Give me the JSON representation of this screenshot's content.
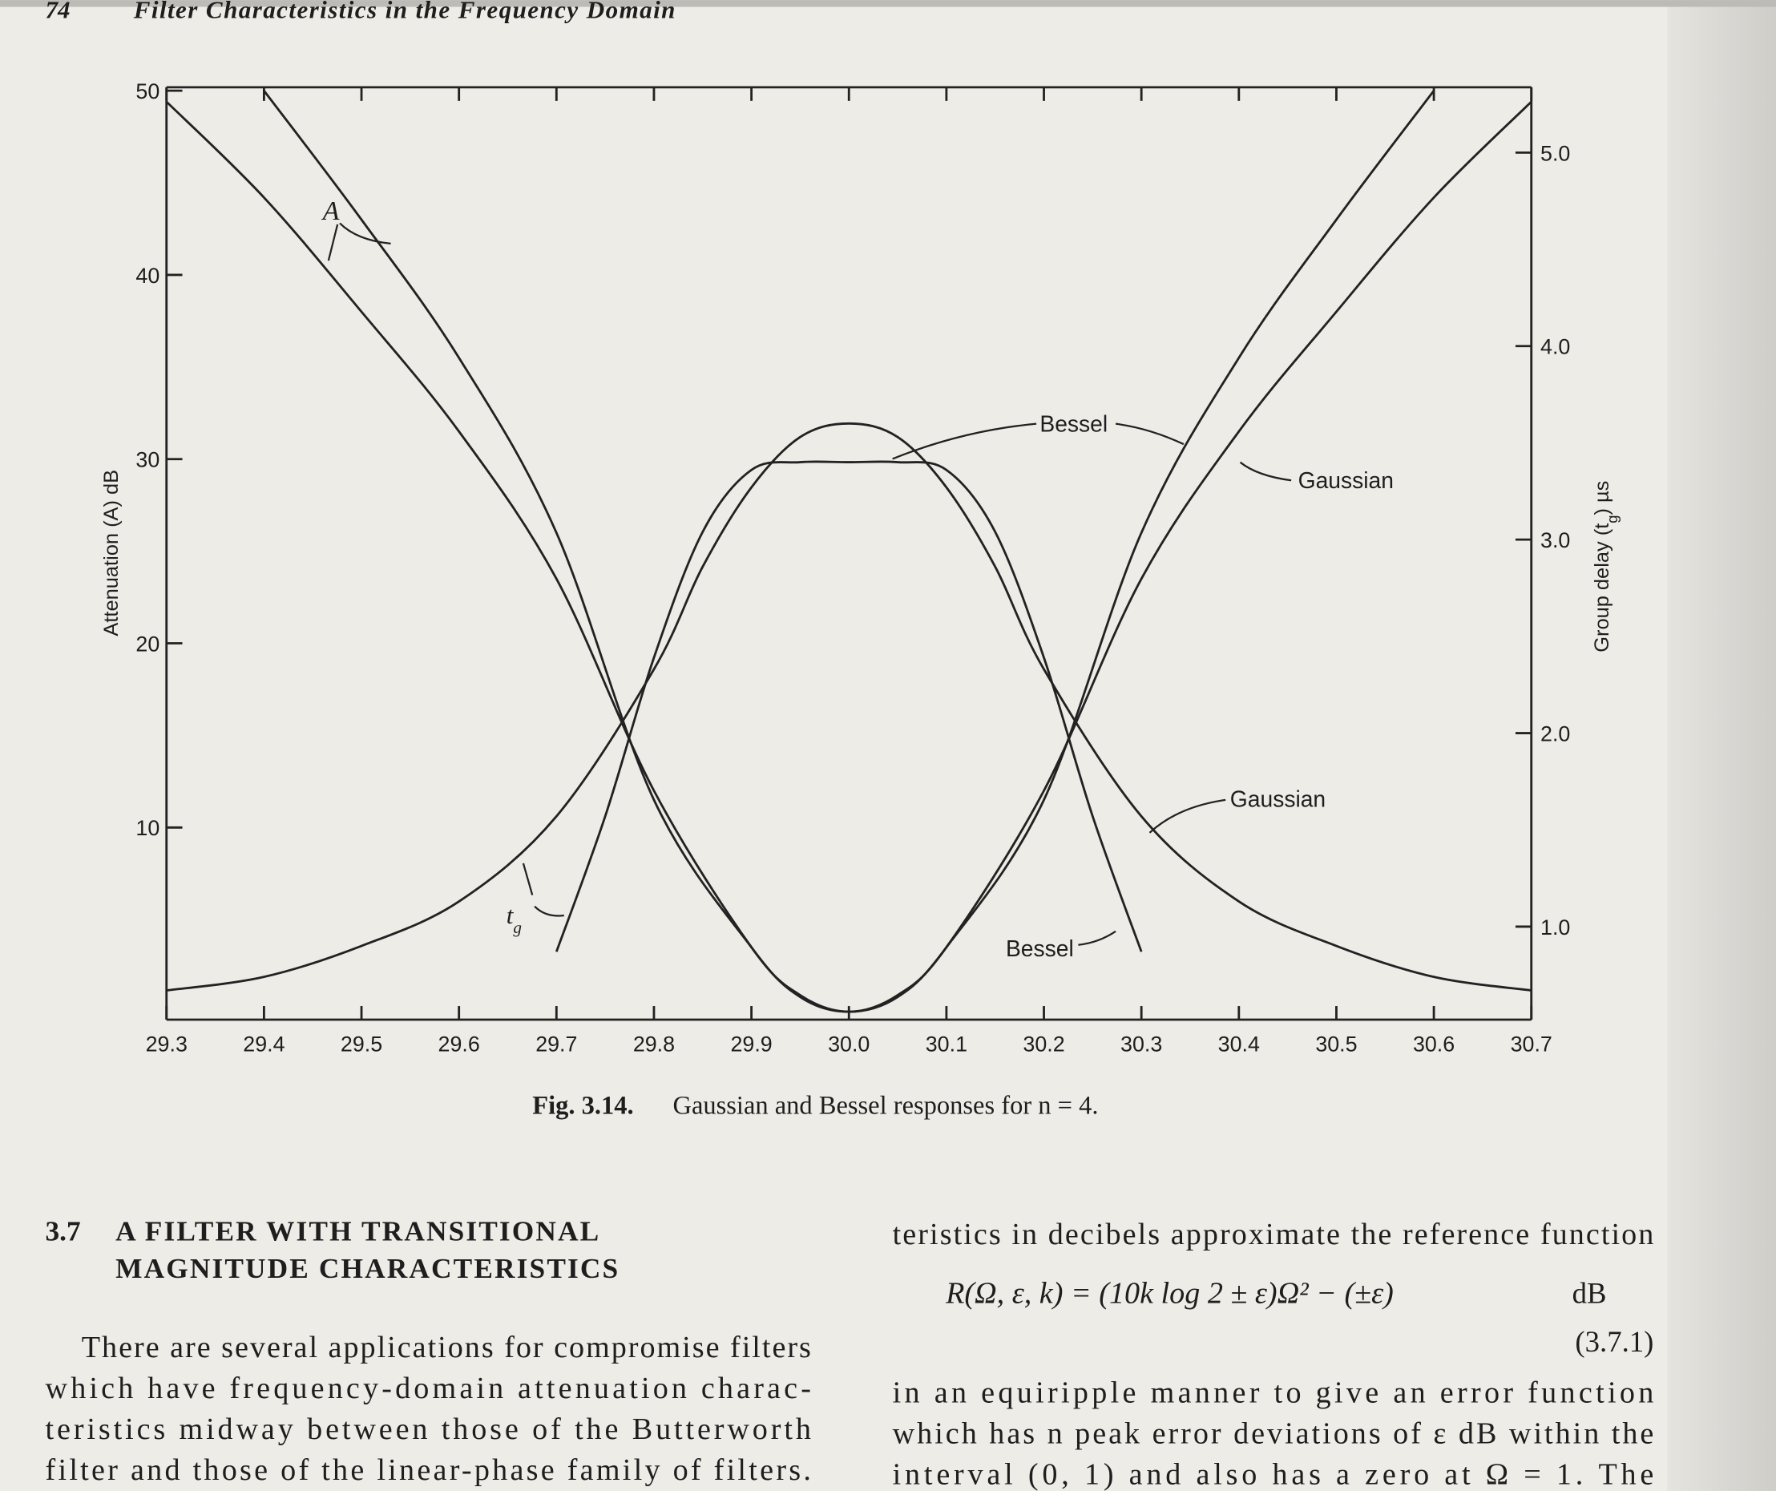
{
  "header": {
    "page_number": "74",
    "running_title": "Filter Characteristics in the Frequency Domain"
  },
  "chart_data": {
    "type": "line",
    "ylabel": "Attenuation (A) dB",
    "y2label": {
      "before": "Group delay (t",
      "subscript": "g",
      "after": ") µs"
    },
    "xlim": [
      29.3,
      30.7
    ],
    "xticks": [
      29.3,
      29.4,
      29.5,
      29.6,
      29.7,
      29.8,
      29.9,
      {
        "value": 30,
        "label": "30.0"
      },
      30.1,
      30.2,
      30.3,
      30.4,
      30.5,
      30.6,
      30.7
    ],
    "ylim": [
      0,
      50
    ],
    "yticks": [
      10,
      20,
      30,
      40,
      50
    ],
    "y2lim": [
      0.56,
      5.32
    ],
    "y2ticks": [
      {
        "value": 1,
        "label": "1.0"
      },
      {
        "value": 2,
        "label": "2.0"
      },
      {
        "value": 3,
        "label": "3.0"
      },
      {
        "value": 4,
        "label": "4.0"
      },
      {
        "value": 5,
        "label": "5.0"
      }
    ],
    "grid": false,
    "series": [
      {
        "color": "#222222",
        "x": [
          29.3,
          29.4,
          29.5,
          29.6,
          29.7,
          29.8,
          29.9,
          29.95,
          30.0,
          30.05,
          30.1,
          30.2,
          30.3,
          30.4,
          30.5,
          30.6,
          30.7
        ],
        "values": [
          49.4,
          44.2,
          38,
          31.5,
          23.5,
          12,
          3.5,
          0.9,
          0,
          0.9,
          3.5,
          12,
          23.5,
          31.5,
          38,
          44.2,
          49.4
        ]
      },
      {
        "color": "#222222",
        "x": [
          29.4,
          29.5,
          29.6,
          29.7,
          29.8,
          29.9,
          29.95,
          30.0,
          30.05,
          30.1,
          30.2,
          30.3,
          30.4,
          30.5,
          30.6
        ],
        "values": [
          50,
          43,
          35.5,
          26,
          11.5,
          3.5,
          0.8,
          0,
          0.8,
          3.5,
          11.5,
          26,
          35.5,
          43,
          50
        ]
      },
      {
        "color": "#222222",
        "axis": "y2",
        "x": [
          29.3,
          29.4,
          29.5,
          29.6,
          29.7,
          29.8,
          29.85,
          29.9,
          29.95,
          30.0,
          30.05,
          30.1,
          30.15,
          30.2,
          30.3,
          30.4,
          30.5,
          30.6,
          30.7
        ],
        "values": [
          0.67,
          0.74,
          0.9,
          1.13,
          1.57,
          2.33,
          2.86,
          3.27,
          3.53,
          3.6,
          3.53,
          3.27,
          2.86,
          2.33,
          1.57,
          1.13,
          0.9,
          0.74,
          0.67
        ]
      },
      {
        "color": "#222222",
        "axis": "y2",
        "x": [
          29.7,
          29.75,
          29.8,
          29.85,
          29.9,
          29.95,
          30.0,
          30.05,
          30.1,
          30.15,
          30.2,
          30.25,
          30.3
        ],
        "values": [
          0.87,
          1.57,
          2.39,
          3.04,
          3.36,
          3.4,
          3.4,
          3.4,
          3.36,
          3.04,
          2.39,
          1.57,
          0.87
        ]
      }
    ],
    "annotations": [
      {
        "text": "A"
      },
      {
        "text": "t",
        "subscript": "g"
      },
      {
        "text": "Bessel"
      },
      {
        "text": "Gaussian"
      },
      {
        "text": "Gaussian"
      },
      {
        "text": "Bessel"
      }
    ]
  },
  "caption": {
    "label": "Fig. 3.14.",
    "text": "Gaussian and Bessel responses for n = 4."
  },
  "section": {
    "number": "3.7",
    "title_lines": [
      "A FILTER WITH TRANSITIONAL",
      "MAGNITUDE CHARACTERISTICS"
    ]
  },
  "left_column": {
    "lines": [
      "There are several applications for compromise filters",
      "which have frequency-domain attenuation charac-",
      "teristics midway between those of the Butterworth",
      "filter and those of the linear-phase family of filters."
    ]
  },
  "right_column": {
    "lines_before": [
      "teristics in decibels approximate the reference function"
    ],
    "equation": "R(Ω, ε, k) = (10k log 2 ± ε)Ω² − (±ε)",
    "equation_unit": "dB",
    "equation_number": "(3.7.1)",
    "lines_after": [
      "in an equiripple manner to give an error function",
      "which has n peak error deviations of ε dB within the",
      "interval (0, 1) and also has a zero at Ω = 1. The"
    ]
  }
}
